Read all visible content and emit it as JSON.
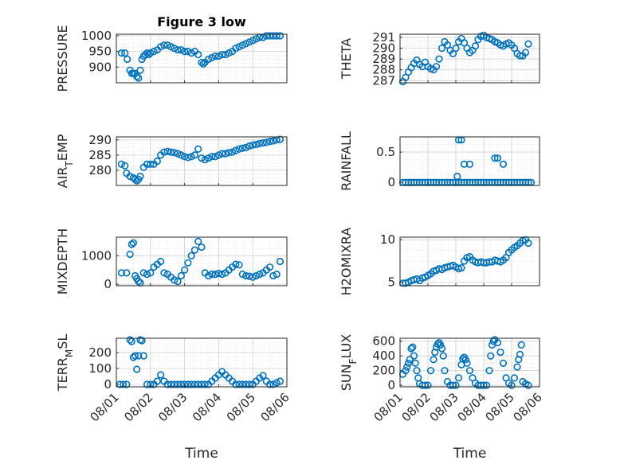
{
  "chart_data": [
    {
      "type": "scatter",
      "title": "Figure 3 low",
      "ylabel": "PRESSURE",
      "xlabel": "",
      "xlim": [
        "08/01",
        "08/06"
      ],
      "ylim": [
        850,
        1005
      ],
      "yticks": [
        900,
        950,
        1000
      ],
      "xticks": [],
      "grid": true,
      "series": [
        {
          "x": [
            0.15,
            0.25,
            0.32,
            0.4,
            0.45,
            0.5,
            0.55,
            0.6,
            0.65,
            0.7,
            0.75,
            0.8,
            0.85,
            0.9,
            0.95,
            1.0,
            1.1,
            1.2,
            1.3,
            1.4,
            1.5,
            1.6,
            1.7,
            1.8,
            1.9,
            2.0,
            2.1,
            2.2,
            2.3,
            2.4,
            2.5,
            2.55,
            2.6,
            2.7,
            2.8,
            2.9,
            3.0,
            3.1,
            3.2,
            3.3,
            3.4,
            3.5,
            3.6,
            3.7,
            3.8,
            3.9,
            4.0,
            4.1,
            4.2,
            4.3,
            4.4,
            4.5,
            4.6,
            4.7,
            4.8
          ],
          "y": [
            945,
            945,
            925,
            890,
            880,
            880,
            880,
            870,
            865,
            890,
            925,
            935,
            940,
            945,
            940,
            945,
            950,
            955,
            965,
            970,
            970,
            965,
            960,
            955,
            955,
            950,
            950,
            945,
            950,
            940,
            915,
            910,
            915,
            925,
            930,
            935,
            935,
            940,
            940,
            945,
            950,
            960,
            965,
            970,
            975,
            980,
            985,
            990,
            995,
            995,
            1000,
            1000,
            1000,
            1000,
            1000
          ]
        }
      ]
    },
    {
      "type": "scatter",
      "title": "",
      "ylabel": "THETA",
      "xlabel": "",
      "xlim": [
        "08/01",
        "08/06"
      ],
      "ylim": [
        286.8,
        291.3
      ],
      "yticks": [
        287,
        288,
        289,
        290,
        291
      ],
      "xticks": [],
      "grid": true,
      "series": [
        {
          "x": [
            0.1,
            0.2,
            0.3,
            0.4,
            0.5,
            0.6,
            0.7,
            0.8,
            0.9,
            1.0,
            1.1,
            1.2,
            1.3,
            1.4,
            1.5,
            1.6,
            1.7,
            1.8,
            1.9,
            2.0,
            2.1,
            2.2,
            2.3,
            2.4,
            2.5,
            2.6,
            2.7,
            2.8,
            2.9,
            3.0,
            3.1,
            3.2,
            3.3,
            3.4,
            3.5,
            3.6,
            3.7,
            3.8,
            3.9,
            4.0,
            4.1,
            4.2,
            4.3,
            4.4,
            4.5,
            4.6
          ],
          "y": [
            286.9,
            287.3,
            287.8,
            288.2,
            288.6,
            288.9,
            288.5,
            288.3,
            288.7,
            288.3,
            288.1,
            288.0,
            288.3,
            289.0,
            290.0,
            290.6,
            290.3,
            289.8,
            289.5,
            290.0,
            290.6,
            290.9,
            290.5,
            290.0,
            289.6,
            289.8,
            290.2,
            290.8,
            291.1,
            291.2,
            291.0,
            290.9,
            290.8,
            290.6,
            290.5,
            290.3,
            290.2,
            290.4,
            290.5,
            290.3,
            290.0,
            289.5,
            289.3,
            289.3,
            289.6,
            290.4
          ]
        }
      ]
    },
    {
      "type": "scatter",
      "title": "",
      "ylabel": "AIR",
      "ylabel_sub": "T",
      "ylabel_tail": "EMP",
      "xlabel": "",
      "xlim": [
        "08/01",
        "08/06"
      ],
      "ylim": [
        275,
        291
      ],
      "yticks": [
        280,
        285,
        290
      ],
      "xticks": [],
      "grid": true,
      "series": [
        {
          "x": [
            0.15,
            0.25,
            0.3,
            0.4,
            0.5,
            0.55,
            0.6,
            0.65,
            0.7,
            0.8,
            0.9,
            1.0,
            1.1,
            1.2,
            1.3,
            1.4,
            1.5,
            1.6,
            1.7,
            1.8,
            1.9,
            2.0,
            2.1,
            2.2,
            2.3,
            2.4,
            2.5,
            2.6,
            2.7,
            2.8,
            2.9,
            3.0,
            3.1,
            3.2,
            3.3,
            3.4,
            3.5,
            3.6,
            3.7,
            3.8,
            3.9,
            4.0,
            4.1,
            4.2,
            4.3,
            4.4,
            4.5,
            4.6,
            4.7,
            4.8
          ],
          "y": [
            282,
            281.5,
            279,
            278,
            277.5,
            277,
            276.5,
            277,
            278,
            281,
            282,
            282,
            282,
            283,
            285,
            286,
            286.2,
            286,
            285.8,
            285.5,
            285,
            284.5,
            284.2,
            284.5,
            285,
            287,
            284,
            283.5,
            284,
            284.5,
            284.5,
            285,
            285.5,
            285.5,
            285.8,
            286,
            286.5,
            287,
            287.3,
            287.5,
            288,
            288.3,
            288.5,
            288.8,
            289,
            289.2,
            289.5,
            289.7,
            290,
            290.2
          ]
        }
      ]
    },
    {
      "type": "scatter",
      "title": "",
      "ylabel": "RAINFALL",
      "xlabel": "",
      "xlim": [
        "08/01",
        "08/06"
      ],
      "ylim": [
        -0.05,
        0.75
      ],
      "yticks": [
        0,
        0.5
      ],
      "xticks": [],
      "grid": true,
      "series": [
        {
          "x": [
            0.1,
            0.2,
            0.3,
            0.4,
            0.5,
            0.6,
            0.7,
            0.8,
            0.9,
            1.0,
            1.1,
            1.2,
            1.3,
            1.4,
            1.5,
            1.6,
            1.7,
            1.8,
            1.9,
            2.0,
            2.1,
            2.2,
            2.3,
            2.4,
            2.5,
            2.6,
            2.7,
            2.8,
            2.9,
            3.0,
            3.1,
            3.2,
            3.3,
            3.4,
            3.5,
            3.6,
            3.7,
            3.8,
            3.9,
            4.0,
            4.1,
            4.2,
            4.3,
            4.4,
            4.5,
            4.6,
            4.7,
            2.1,
            2.2,
            2.3,
            2.5,
            3.4,
            3.5,
            3.7,
            2.05
          ],
          "y": [
            0,
            0,
            0,
            0,
            0,
            0,
            0,
            0,
            0,
            0,
            0,
            0,
            0,
            0,
            0,
            0,
            0,
            0,
            0,
            0,
            0,
            0,
            0,
            0,
            0,
            0,
            0,
            0,
            0,
            0,
            0,
            0,
            0,
            0,
            0,
            0,
            0,
            0,
            0,
            0,
            0,
            0,
            0,
            0,
            0,
            0,
            0,
            0.7,
            0.7,
            0.3,
            0.3,
            0.4,
            0.4,
            0.3,
            0.1
          ]
        }
      ]
    },
    {
      "type": "scatter",
      "title": "",
      "ylabel": "MIXDEPTH",
      "xlabel": "",
      "xlim": [
        "08/01",
        "08/06"
      ],
      "ylim": [
        -50,
        1650
      ],
      "yticks": [
        0,
        1000
      ],
      "xticks": [],
      "grid": true,
      "series": [
        {
          "x": [
            0.15,
            0.3,
            0.4,
            0.45,
            0.5,
            0.55,
            0.6,
            0.65,
            0.7,
            0.8,
            0.9,
            1.0,
            1.1,
            1.2,
            1.3,
            1.4,
            1.5,
            1.6,
            1.7,
            1.8,
            1.9,
            2.0,
            2.1,
            2.2,
            2.3,
            2.4,
            2.5,
            2.6,
            2.7,
            2.8,
            2.9,
            3.0,
            3.1,
            3.2,
            3.3,
            3.4,
            3.5,
            3.6,
            3.7,
            3.8,
            3.9,
            4.0,
            4.1,
            4.2,
            4.3,
            4.4,
            4.5,
            4.6,
            4.7,
            4.8
          ],
          "y": [
            400,
            400,
            1050,
            1400,
            1450,
            300,
            200,
            100,
            50,
            400,
            350,
            400,
            600,
            700,
            800,
            400,
            350,
            250,
            150,
            100,
            300,
            500,
            750,
            1000,
            1200,
            1500,
            1300,
            400,
            300,
            350,
            350,
            380,
            350,
            400,
            500,
            600,
            700,
            680,
            350,
            300,
            280,
            250,
            300,
            350,
            400,
            500,
            600,
            300,
            350,
            800
          ]
        }
      ]
    },
    {
      "type": "scatter",
      "title": "",
      "ylabel": "H2OMIXRA",
      "xlabel": "",
      "xlim": [
        "08/01",
        "08/06"
      ],
      "ylim": [
        4.6,
        10.3
      ],
      "yticks": [
        5,
        10
      ],
      "xticks": [],
      "grid": true,
      "series": [
        {
          "x": [
            0.1,
            0.2,
            0.3,
            0.4,
            0.5,
            0.6,
            0.7,
            0.8,
            0.9,
            1.0,
            1.1,
            1.2,
            1.3,
            1.4,
            1.5,
            1.6,
            1.7,
            1.8,
            1.9,
            2.0,
            2.1,
            2.2,
            2.3,
            2.4,
            2.5,
            2.6,
            2.7,
            2.8,
            2.9,
            3.0,
            3.1,
            3.2,
            3.3,
            3.4,
            3.5,
            3.6,
            3.7,
            3.8,
            3.9,
            4.0,
            4.1,
            4.2,
            4.3,
            4.4,
            4.5,
            4.6
          ],
          "y": [
            4.9,
            4.9,
            5.0,
            5.2,
            5.3,
            5.4,
            5.2,
            5.5,
            5.6,
            5.8,
            6.0,
            6.3,
            6.4,
            6.6,
            6.5,
            6.7,
            6.8,
            6.9,
            7.0,
            6.8,
            6.6,
            6.7,
            7.5,
            7.9,
            8.0,
            7.6,
            7.4,
            7.3,
            7.4,
            7.3,
            7.3,
            7.4,
            7.4,
            7.6,
            7.5,
            7.4,
            7.6,
            7.9,
            8.5,
            8.8,
            9.1,
            9.3,
            9.6,
            9.9,
            10.0,
            9.6
          ]
        }
      ]
    },
    {
      "type": "scatter",
      "title": "",
      "ylabel": "TERR",
      "ylabel_sub": "M",
      "ylabel_tail": "SL",
      "xlabel": "Time",
      "xlim": [
        "08/01",
        "08/06"
      ],
      "ylim": [
        -15,
        290
      ],
      "yticks": [
        0,
        100,
        200
      ],
      "xticks": [
        "08/01",
        "08/02",
        "08/03",
        "08/04",
        "08/05",
        "08/06"
      ],
      "grid": true,
      "series": [
        {
          "x": [
            0.1,
            0.2,
            0.3,
            0.4,
            0.45,
            0.5,
            0.55,
            0.6,
            0.65,
            0.7,
            0.75,
            0.8,
            0.9,
            1.0,
            1.1,
            1.2,
            1.3,
            1.4,
            1.5,
            1.6,
            1.7,
            1.8,
            1.9,
            2.0,
            2.1,
            2.2,
            2.3,
            2.4,
            2.5,
            2.6,
            2.7,
            2.8,
            2.9,
            3.0,
            3.1,
            3.2,
            3.3,
            3.4,
            3.5,
            3.6,
            3.7,
            3.8,
            3.9,
            4.0,
            4.1,
            4.2,
            4.3,
            4.4,
            4.5,
            4.6,
            4.7,
            4.8
          ],
          "y": [
            0,
            0,
            0,
            280,
            270,
            170,
            180,
            95,
            180,
            280,
            275,
            180,
            0,
            0,
            0,
            20,
            60,
            20,
            0,
            0,
            0,
            0,
            0,
            0,
            0,
            0,
            0,
            0,
            0,
            0,
            0,
            20,
            40,
            60,
            80,
            60,
            40,
            20,
            0,
            0,
            0,
            0,
            0,
            0,
            20,
            40,
            55,
            20,
            0,
            0,
            10,
            20
          ]
        }
      ]
    },
    {
      "type": "scatter",
      "title": "",
      "ylabel": "SUN",
      "ylabel_sub": "F",
      "ylabel_tail": "LUX",
      "xlabel": "Time",
      "xlim": [
        "08/01",
        "08/06"
      ],
      "ylim": [
        -20,
        640
      ],
      "yticks": [
        0,
        200,
        400,
        600
      ],
      "xticks": [
        "08/01",
        "08/02",
        "08/03",
        "08/04",
        "08/05",
        "08/06"
      ],
      "grid": true,
      "series": [
        {
          "x": [
            0.1,
            0.2,
            0.25,
            0.3,
            0.35,
            0.4,
            0.45,
            0.5,
            0.55,
            0.6,
            0.65,
            0.7,
            0.8,
            0.9,
            1.0,
            1.1,
            1.2,
            1.25,
            1.3,
            1.35,
            1.4,
            1.45,
            1.5,
            1.55,
            1.6,
            1.7,
            1.8,
            1.9,
            2.0,
            2.1,
            2.2,
            2.25,
            2.3,
            2.35,
            2.4,
            2.5,
            2.6,
            2.7,
            2.8,
            2.9,
            3.0,
            3.1,
            3.2,
            3.25,
            3.3,
            3.35,
            3.4,
            3.5,
            3.6,
            3.7,
            3.8,
            3.9,
            4.0,
            4.1,
            4.2,
            4.25,
            4.3,
            4.35,
            4.4,
            4.5,
            4.6
          ],
          "y": [
            150,
            200,
            250,
            300,
            350,
            500,
            520,
            400,
            300,
            200,
            100,
            20,
            0,
            0,
            0,
            200,
            350,
            450,
            520,
            560,
            580,
            550,
            500,
            400,
            200,
            50,
            0,
            0,
            0,
            100,
            280,
            360,
            380,
            350,
            300,
            200,
            100,
            30,
            0,
            0,
            0,
            0,
            200,
            400,
            550,
            600,
            620,
            580,
            450,
            300,
            100,
            30,
            0,
            100,
            250,
            350,
            420,
            550,
            50,
            20,
            0
          ]
        }
      ]
    }
  ]
}
